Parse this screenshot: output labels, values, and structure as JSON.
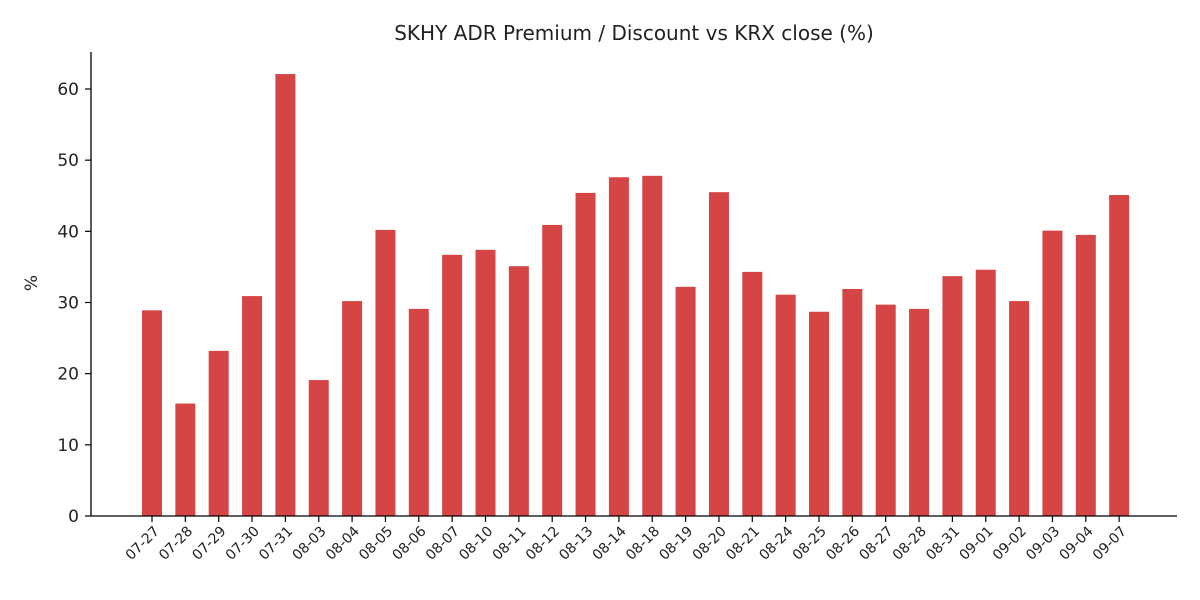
{
  "chart_data": {
    "type": "bar",
    "title": "SKHY ADR Premium / Discount vs KRX close (%)",
    "xlabel": "",
    "ylabel": "%",
    "ylim": [
      0,
      65
    ],
    "yticks": [
      0,
      10,
      20,
      30,
      40,
      50,
      60
    ],
    "grid": false,
    "bar_color": "#d64545",
    "categories": [
      "07-27",
      "07-28",
      "07-29",
      "07-30",
      "07-31",
      "08-03",
      "08-04",
      "08-05",
      "08-06",
      "08-07",
      "08-10",
      "08-11",
      "08-12",
      "08-13",
      "08-14",
      "08-18",
      "08-19",
      "08-20",
      "08-21",
      "08-24",
      "08-25",
      "08-26",
      "08-27",
      "08-28",
      "08-31",
      "09-01",
      "09-02",
      "09-03",
      "09-04",
      "09-07"
    ],
    "values": [
      28.9,
      15.8,
      23.2,
      30.9,
      62.1,
      19.1,
      30.2,
      40.2,
      29.1,
      36.7,
      37.4,
      35.1,
      40.9,
      45.4,
      47.6,
      47.8,
      32.2,
      45.5,
      34.3,
      31.1,
      28.7,
      31.9,
      29.7,
      29.1,
      33.7,
      34.6,
      30.2,
      40.1,
      39.5,
      45.1
    ]
  }
}
